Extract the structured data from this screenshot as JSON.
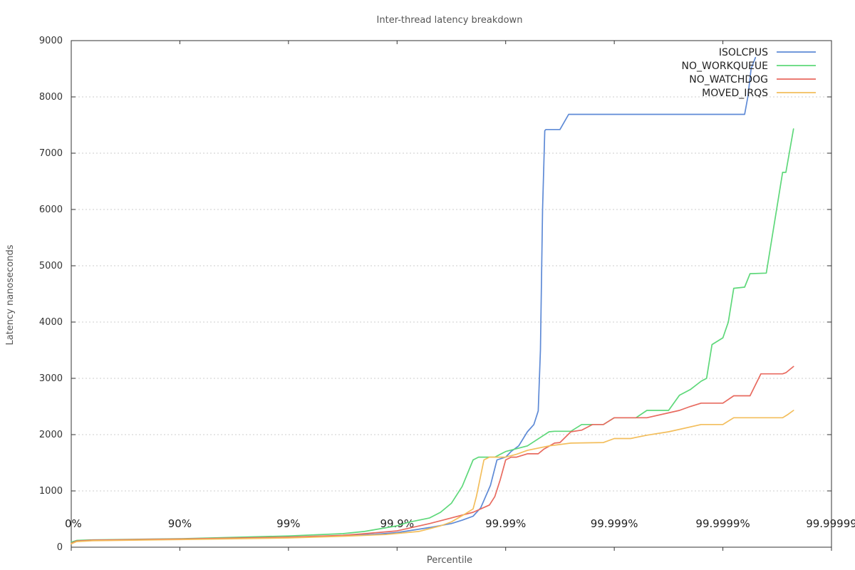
{
  "chart_data": {
    "type": "line",
    "title": "Inter-thread latency breakdown",
    "xlabel": "Percentile",
    "ylabel": "Latency nanoseconds",
    "xscale": "-log10(1 - percentile)",
    "xlim": [
      0,
      7
    ],
    "ylim": [
      0,
      9000
    ],
    "yticks": [
      0,
      1000,
      2000,
      3000,
      4000,
      5000,
      6000,
      7000,
      8000,
      9000
    ],
    "xtick_labels": [
      "0%",
      "90%",
      "99%",
      "99.9%",
      "99.99%",
      "99.999%",
      "99.9999%",
      "99.99999"
    ],
    "grid": "horizontal dashed",
    "legend_placement": "top-right",
    "series": [
      {
        "name": "ISOLCPUS",
        "color": "#5e8ad6",
        "x": [
          0,
          0.04,
          0.2,
          1.0,
          2.0,
          2.5,
          2.8,
          3.0,
          3.1,
          3.3,
          3.5,
          3.6,
          3.7,
          3.77,
          3.86,
          3.92,
          4.0,
          4.05,
          4.12,
          4.2,
          4.26,
          4.3,
          4.32,
          4.34,
          4.36,
          4.37,
          4.5,
          4.58,
          4.62,
          5.0,
          5.5,
          6.0,
          6.2,
          6.23,
          6.26,
          6.3
        ],
        "y": [
          80,
          110,
          120,
          140,
          175,
          200,
          230,
          260,
          290,
          350,
          420,
          480,
          550,
          700,
          1100,
          1550,
          1600,
          1700,
          1800,
          2050,
          2180,
          2420,
          3500,
          6000,
          7400,
          7420,
          7420,
          7690,
          7690,
          7690,
          7690,
          7690,
          7690,
          8000,
          8500,
          8700
        ]
      },
      {
        "name": "NO_WORKQUEUE",
        "color": "#5ed87a",
        "x": [
          0,
          0.05,
          0.2,
          1.0,
          2.0,
          2.5,
          2.7,
          3.0,
          3.1,
          3.3,
          3.4,
          3.5,
          3.6,
          3.7,
          3.75,
          3.83,
          3.9,
          3.95,
          4.0,
          4.2,
          4.4,
          4.45,
          4.5,
          4.6,
          4.7,
          4.75,
          4.8,
          4.9,
          5.0,
          5.1,
          5.2,
          5.3,
          5.5,
          5.6,
          5.7,
          5.8,
          5.85,
          5.9,
          6.0,
          6.05,
          6.1,
          6.2,
          6.25,
          6.4,
          6.55,
          6.58,
          6.65
        ],
        "y": [
          90,
          120,
          130,
          150,
          200,
          240,
          280,
          380,
          440,
          520,
          620,
          780,
          1080,
          1550,
          1600,
          1600,
          1600,
          1650,
          1700,
          1800,
          2050,
          2060,
          2060,
          2060,
          2180,
          2180,
          2180,
          2180,
          2300,
          2300,
          2300,
          2430,
          2430,
          2700,
          2800,
          2950,
          3000,
          3600,
          3720,
          4000,
          4600,
          4620,
          4860,
          4870,
          6660,
          6660,
          7430
        ]
      },
      {
        "name": "NO_WATCHDOG",
        "color": "#e86a5f",
        "x": [
          0,
          0.05,
          0.2,
          1.0,
          2.0,
          2.5,
          2.7,
          3.0,
          3.3,
          3.5,
          3.7,
          3.85,
          3.9,
          3.95,
          4.0,
          4.05,
          4.1,
          4.2,
          4.3,
          4.35,
          4.45,
          4.5,
          4.6,
          4.7,
          4.8,
          4.9,
          5.0,
          5.1,
          5.3,
          5.6,
          5.7,
          5.8,
          6.0,
          6.1,
          6.2,
          6.25,
          6.35,
          6.4,
          6.55,
          6.58,
          6.65
        ],
        "y": [
          70,
          110,
          125,
          145,
          180,
          210,
          240,
          290,
          420,
          520,
          620,
          750,
          900,
          1200,
          1550,
          1600,
          1600,
          1660,
          1660,
          1740,
          1850,
          1860,
          2050,
          2080,
          2180,
          2180,
          2300,
          2300,
          2300,
          2430,
          2500,
          2560,
          2560,
          2690,
          2690,
          2690,
          3080,
          3080,
          3080,
          3100,
          3210
        ]
      },
      {
        "name": "MOVED_IRQS",
        "color": "#f3be5c",
        "x": [
          0,
          0.05,
          0.2,
          1.0,
          2.0,
          2.5,
          2.9,
          3.2,
          3.4,
          3.5,
          3.6,
          3.7,
          3.73,
          3.8,
          3.85,
          3.95,
          4.0,
          4.1,
          4.2,
          4.4,
          4.6,
          4.9,
          5.0,
          5.15,
          5.3,
          5.5,
          5.8,
          6.0,
          6.1,
          6.3,
          6.55,
          6.6,
          6.65
        ],
        "y": [
          60,
          100,
          115,
          135,
          165,
          195,
          225,
          280,
          380,
          450,
          560,
          680,
          900,
          1550,
          1600,
          1600,
          1600,
          1650,
          1720,
          1800,
          1850,
          1860,
          1930,
          1930,
          1990,
          2050,
          2180,
          2180,
          2300,
          2300,
          2300,
          2360,
          2430
        ]
      }
    ]
  }
}
